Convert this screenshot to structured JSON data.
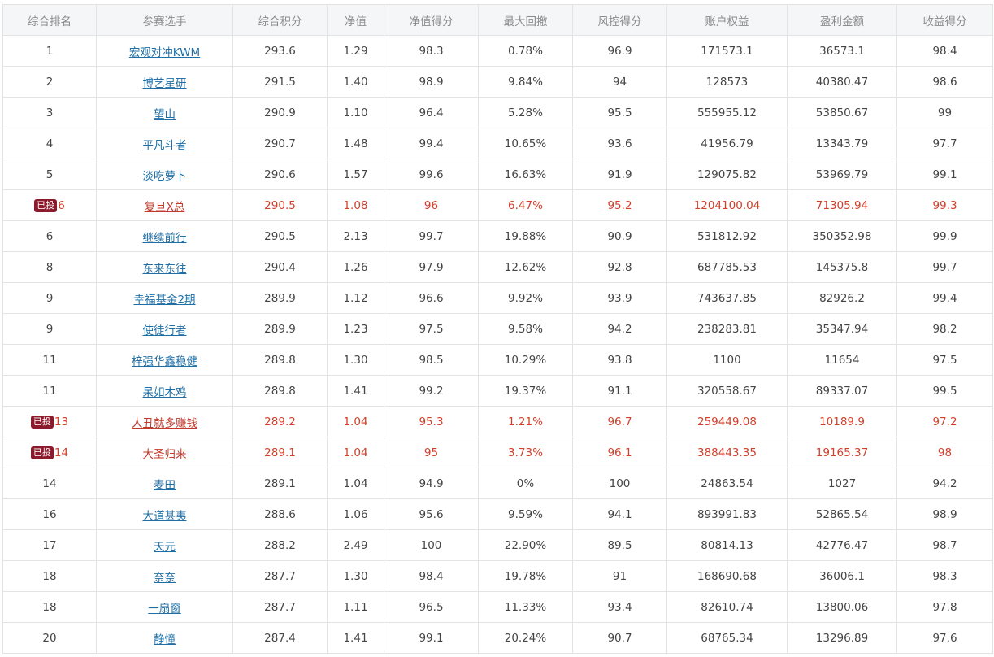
{
  "table": {
    "headers": [
      "综合排名",
      "参赛选手",
      "综合积分",
      "净值",
      "净值得分",
      "最大回撤",
      "风控得分",
      "账户权益",
      "盈利金额",
      "收益得分"
    ],
    "badge_label": "已投",
    "rows": [
      {
        "rank": "1",
        "player": "宏观对冲KWM",
        "score": "293.6",
        "nav": "1.29",
        "nav_score": "98.3",
        "max_dd": "0.78%",
        "risk_score": "96.9",
        "equity": "171573.1",
        "profit": "36573.1",
        "return_score": "98.4",
        "invested": false
      },
      {
        "rank": "2",
        "player": "博艺星研",
        "score": "291.5",
        "nav": "1.40",
        "nav_score": "98.9",
        "max_dd": "9.84%",
        "risk_score": "94",
        "equity": "128573",
        "profit": "40380.47",
        "return_score": "98.6",
        "invested": false
      },
      {
        "rank": "3",
        "player": "望山",
        "score": "290.9",
        "nav": "1.10",
        "nav_score": "96.4",
        "max_dd": "5.28%",
        "risk_score": "95.5",
        "equity": "555955.12",
        "profit": "53850.67",
        "return_score": "99",
        "invested": false
      },
      {
        "rank": "4",
        "player": "平凡斗者",
        "score": "290.7",
        "nav": "1.48",
        "nav_score": "99.4",
        "max_dd": "10.65%",
        "risk_score": "93.6",
        "equity": "41956.79",
        "profit": "13343.79",
        "return_score": "97.7",
        "invested": false
      },
      {
        "rank": "5",
        "player": "淡吃萝卜",
        "score": "290.6",
        "nav": "1.57",
        "nav_score": "99.6",
        "max_dd": "16.63%",
        "risk_score": "91.9",
        "equity": "129075.82",
        "profit": "53969.79",
        "return_score": "99.1",
        "invested": false
      },
      {
        "rank": "6",
        "player": "复旦X总",
        "score": "290.5",
        "nav": "1.08",
        "nav_score": "96",
        "max_dd": "6.47%",
        "risk_score": "95.2",
        "equity": "1204100.04",
        "profit": "71305.94",
        "return_score": "99.3",
        "invested": true
      },
      {
        "rank": "6",
        "player": "继续前行",
        "score": "290.5",
        "nav": "2.13",
        "nav_score": "99.7",
        "max_dd": "19.88%",
        "risk_score": "90.9",
        "equity": "531812.92",
        "profit": "350352.98",
        "return_score": "99.9",
        "invested": false
      },
      {
        "rank": "8",
        "player": "东来东往",
        "score": "290.4",
        "nav": "1.26",
        "nav_score": "97.9",
        "max_dd": "12.62%",
        "risk_score": "92.8",
        "equity": "687785.53",
        "profit": "145375.8",
        "return_score": "99.7",
        "invested": false
      },
      {
        "rank": "9",
        "player": "幸福基金2期",
        "score": "289.9",
        "nav": "1.12",
        "nav_score": "96.6",
        "max_dd": "9.92%",
        "risk_score": "93.9",
        "equity": "743637.85",
        "profit": "82926.2",
        "return_score": "99.4",
        "invested": false
      },
      {
        "rank": "9",
        "player": "使徒行者",
        "score": "289.9",
        "nav": "1.23",
        "nav_score": "97.5",
        "max_dd": "9.58%",
        "risk_score": "94.2",
        "equity": "238283.81",
        "profit": "35347.94",
        "return_score": "98.2",
        "invested": false
      },
      {
        "rank": "11",
        "player": "梓强华鑫稳健",
        "score": "289.8",
        "nav": "1.30",
        "nav_score": "98.5",
        "max_dd": "10.29%",
        "risk_score": "93.8",
        "equity": "1100",
        "profit": "11654",
        "return_score": "97.5",
        "invested": false
      },
      {
        "rank": "11",
        "player": "呆如木鸡",
        "score": "289.8",
        "nav": "1.41",
        "nav_score": "99.2",
        "max_dd": "19.37%",
        "risk_score": "91.1",
        "equity": "320558.67",
        "profit": "89337.07",
        "return_score": "99.5",
        "invested": false
      },
      {
        "rank": "13",
        "player": "人丑就多赚钱",
        "score": "289.2",
        "nav": "1.04",
        "nav_score": "95.3",
        "max_dd": "1.21%",
        "risk_score": "96.7",
        "equity": "259449.08",
        "profit": "10189.9",
        "return_score": "97.2",
        "invested": true
      },
      {
        "rank": "14",
        "player": "大圣归来",
        "score": "289.1",
        "nav": "1.04",
        "nav_score": "95",
        "max_dd": "3.73%",
        "risk_score": "96.1",
        "equity": "388443.35",
        "profit": "19165.37",
        "return_score": "98",
        "invested": true
      },
      {
        "rank": "14",
        "player": "麦田",
        "score": "289.1",
        "nav": "1.04",
        "nav_score": "94.9",
        "max_dd": "0%",
        "risk_score": "100",
        "equity": "24863.54",
        "profit": "1027",
        "return_score": "94.2",
        "invested": false
      },
      {
        "rank": "16",
        "player": "大道甚夷",
        "score": "288.6",
        "nav": "1.06",
        "nav_score": "95.6",
        "max_dd": "9.59%",
        "risk_score": "94.1",
        "equity": "893991.83",
        "profit": "52865.54",
        "return_score": "98.9",
        "invested": false
      },
      {
        "rank": "17",
        "player": "天元",
        "score": "288.2",
        "nav": "2.49",
        "nav_score": "100",
        "max_dd": "22.90%",
        "risk_score": "89.5",
        "equity": "80814.13",
        "profit": "42776.47",
        "return_score": "98.7",
        "invested": false
      },
      {
        "rank": "18",
        "player": "奈奈",
        "score": "287.7",
        "nav": "1.30",
        "nav_score": "98.4",
        "max_dd": "19.78%",
        "risk_score": "91",
        "equity": "168690.68",
        "profit": "36006.1",
        "return_score": "98.3",
        "invested": false
      },
      {
        "rank": "18",
        "player": "一扇窗",
        "score": "287.7",
        "nav": "1.11",
        "nav_score": "96.5",
        "max_dd": "11.33%",
        "risk_score": "93.4",
        "equity": "82610.74",
        "profit": "13800.06",
        "return_score": "97.8",
        "invested": false
      },
      {
        "rank": "20",
        "player": "静憧",
        "score": "287.4",
        "nav": "1.41",
        "nav_score": "99.1",
        "max_dd": "20.24%",
        "risk_score": "90.7",
        "equity": "68765.34",
        "profit": "13296.89",
        "return_score": "97.6",
        "invested": false
      }
    ]
  }
}
